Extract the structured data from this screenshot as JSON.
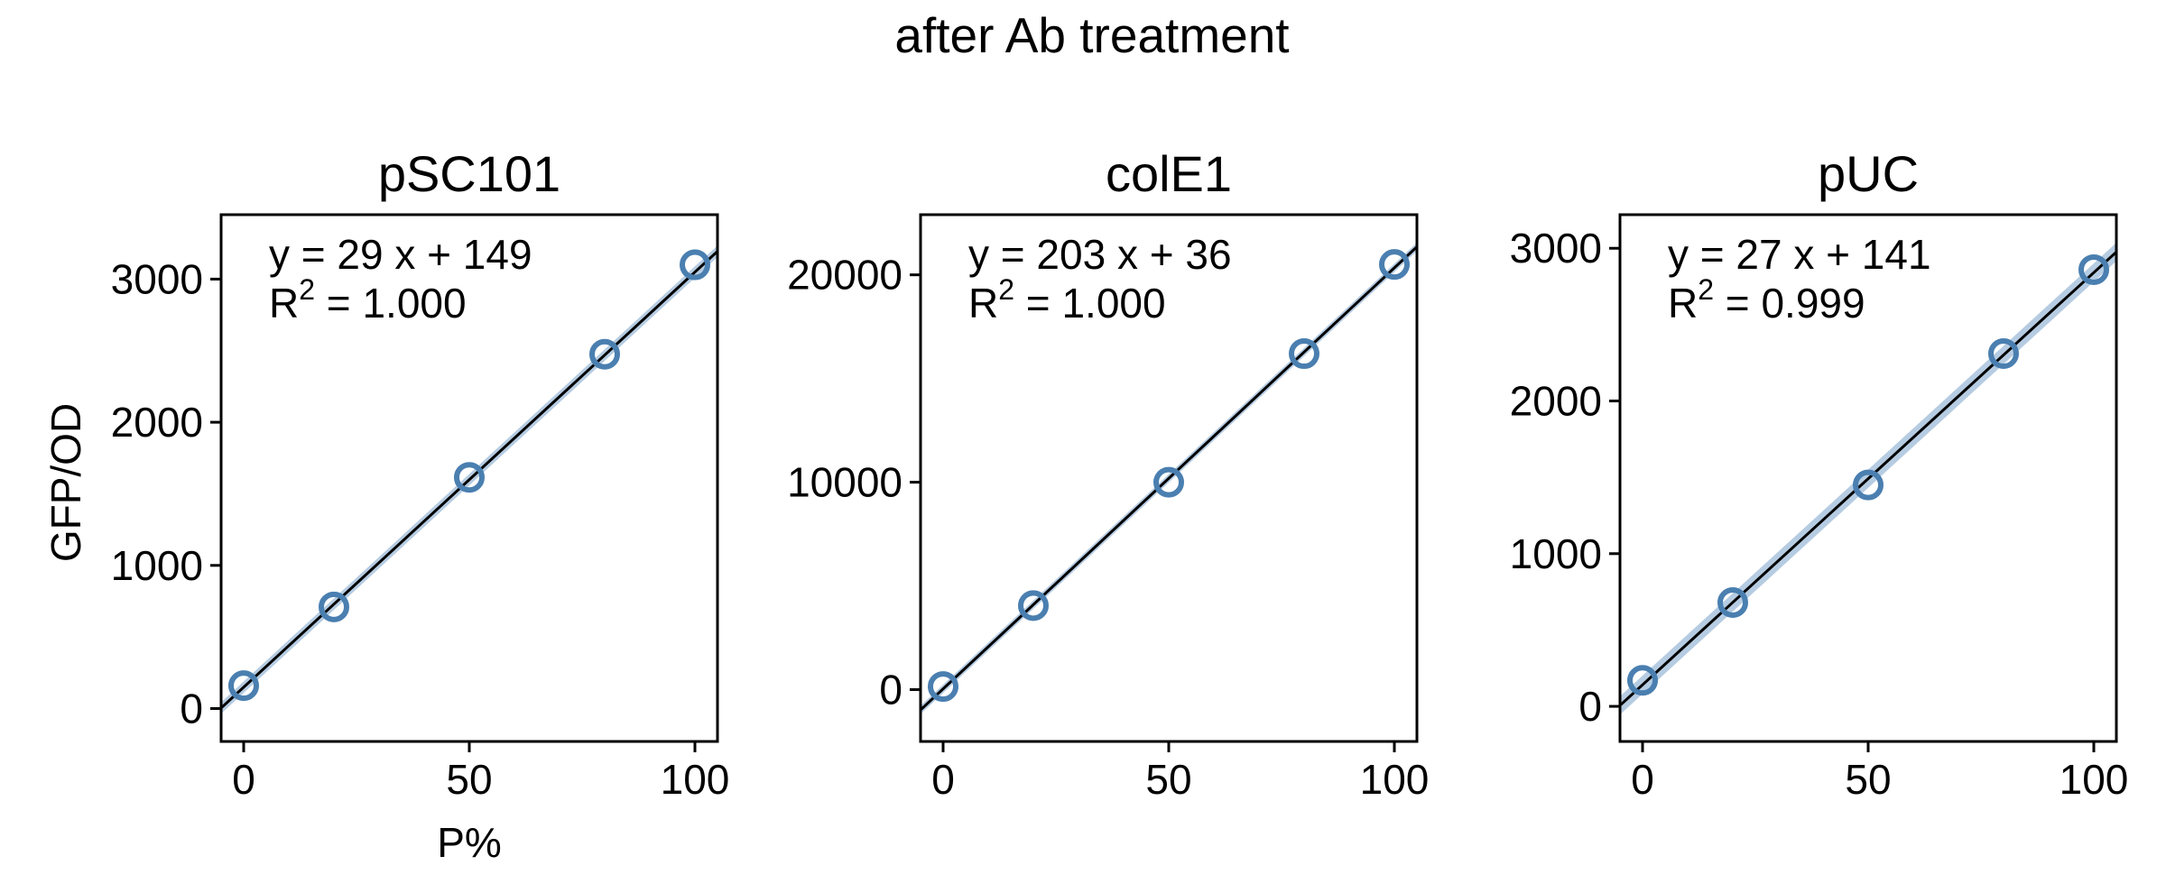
{
  "suptitle": "after Ab treatment",
  "ylabel": "GFP/OD",
  "colors": {
    "marker": "#4a7fb0",
    "band": "#9dbbd8",
    "fit": "#000000",
    "axis": "#000000"
  },
  "chart_data": [
    {
      "type": "scatter",
      "title": "pSC101",
      "xlabel": "P%",
      "x": [
        0,
        20,
        50,
        80,
        100
      ],
      "y": [
        160,
        710,
        1615,
        2475,
        3100
      ],
      "xlim": [
        -5,
        105
      ],
      "ylim": [
        -230,
        3450
      ],
      "xticks": [
        0,
        50,
        100
      ],
      "yticks": [
        0,
        1000,
        2000,
        3000
      ],
      "fit": {
        "slope": 29,
        "intercept": 149
      },
      "equation": "y = 29 x + 149",
      "r2_label": "R",
      "r2_value": " = 1.000",
      "band_halfwidth": 40
    },
    {
      "type": "scatter",
      "title": "colE1",
      "xlabel": "",
      "x": [
        0,
        20,
        50,
        80,
        100
      ],
      "y": [
        150,
        4050,
        10000,
        16200,
        20500
      ],
      "xlim": [
        -5,
        105
      ],
      "ylim": [
        -2500,
        22900
      ],
      "xticks": [
        0,
        50,
        100
      ],
      "yticks": [
        0,
        10000,
        20000
      ],
      "fit": {
        "slope": 203,
        "intercept": 36
      },
      "equation": "y = 203 x + 36",
      "r2_label": "R",
      "r2_value": " = 1.000",
      "band_halfwidth": 200
    },
    {
      "type": "scatter",
      "title": "pUC",
      "xlabel": "",
      "x": [
        0,
        20,
        50,
        80,
        100
      ],
      "y": [
        170,
        680,
        1450,
        2310,
        2860
      ],
      "xlim": [
        -5,
        105
      ],
      "ylim": [
        -230,
        3220
      ],
      "xticks": [
        0,
        50,
        100
      ],
      "yticks": [
        0,
        1000,
        2000,
        3000
      ],
      "fit": {
        "slope": 27,
        "intercept": 141
      },
      "equation": "y = 27 x + 141",
      "r2_label": "R",
      "r2_value": " = 0.999",
      "band_halfwidth": 60
    }
  ]
}
